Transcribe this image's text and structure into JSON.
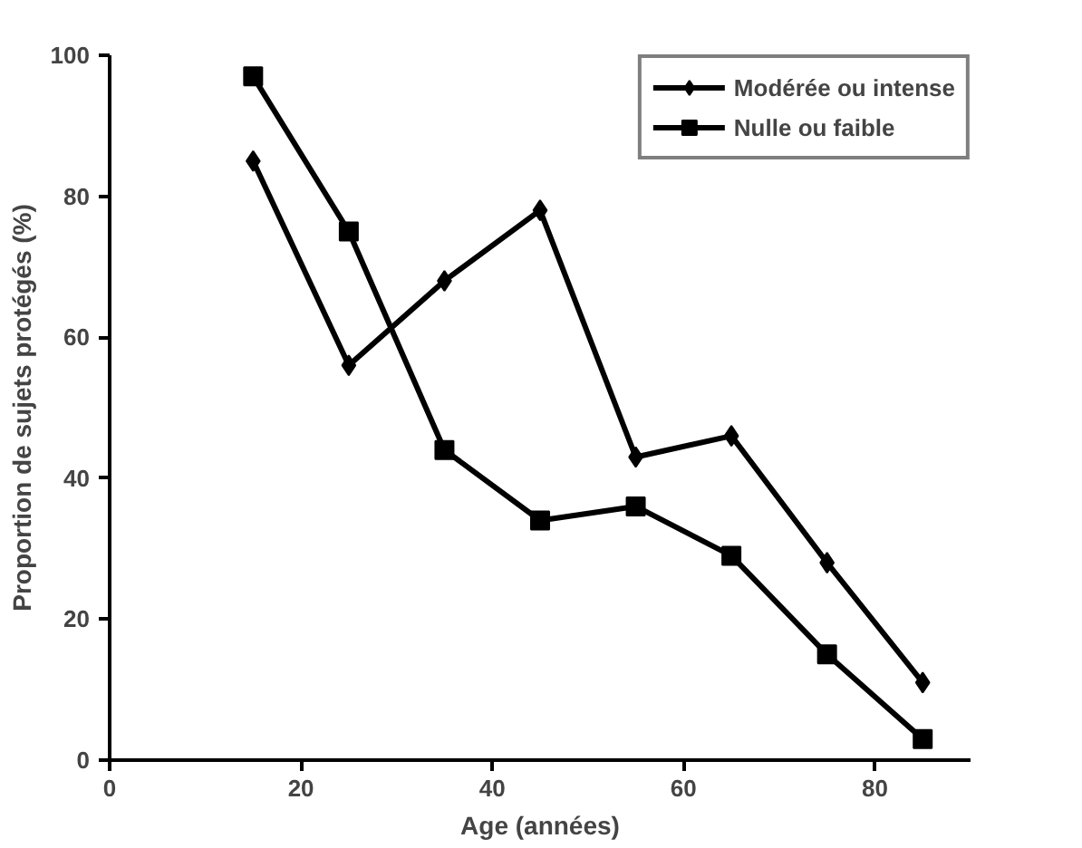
{
  "chart_data": {
    "type": "line",
    "xlabel": "Age (années)",
    "ylabel": "Proportion de sujets protégés (%)",
    "x": [
      15,
      25,
      35,
      45,
      55,
      65,
      75,
      85
    ],
    "series": [
      {
        "name": "Modérée ou intense",
        "color": "#000000",
        "marker": "diamond",
        "values": [
          85,
          56,
          68,
          78,
          43,
          46,
          28,
          11
        ]
      },
      {
        "name": "Nulle ou faible",
        "color": "#000000",
        "marker": "square",
        "values": [
          97,
          75,
          44,
          34,
          36,
          29,
          15,
          3
        ]
      }
    ],
    "xlim": [
      0,
      90
    ],
    "ylim": [
      0,
      100
    ],
    "xticks": [
      0,
      20,
      40,
      60,
      80
    ],
    "yticks": [
      0,
      20,
      40,
      60,
      80,
      100
    ],
    "grid": false,
    "legend": "top right",
    "line_style": "solid"
  }
}
